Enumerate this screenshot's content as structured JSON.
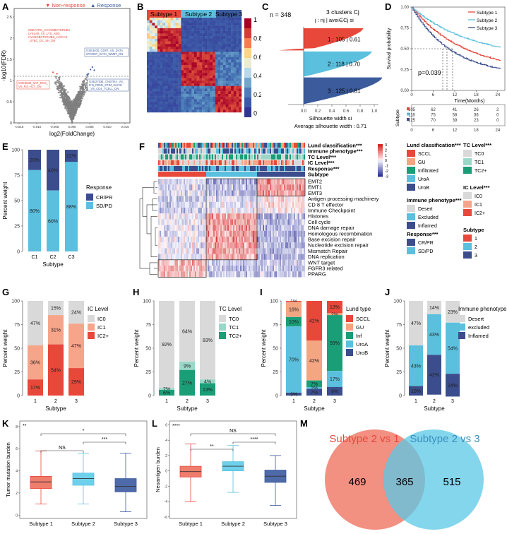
{
  "panel_letters": [
    "A",
    "B",
    "C",
    "D",
    "E",
    "F",
    "G",
    "H",
    "I",
    "J",
    "K",
    "L",
    "M"
  ],
  "colors": {
    "red": "#e8483a",
    "blue": "#3b5b9c",
    "lightblue": "#5bc0de",
    "gray": "#bfbfbf",
    "orange": "#f07e53",
    "salmon": "#f4a582",
    "teal": "#1a9e77",
    "mint": "#99d8c9",
    "darkred": "#b2182b",
    "peach": "#f6b8a0",
    "navy": "#3b4d8c"
  },
  "A": {
    "legend": [
      "Non-response",
      "Response"
    ],
    "xlabel": "log2(FoldChange)",
    "ylabel": "-log10(FDR)",
    "xticks": [
      "-0.015",
      "-0.010",
      "-0.005",
      "0.000",
      "0.005",
      "0.010",
      "0.015"
    ],
    "yticks": [
      "0",
      "0.5",
      "1",
      "1.5",
      "2",
      "2.5"
    ],
    "annot_left1": "OBEATRS_CVANOBCTERUB4\nLYSLAB_VS_LYS_AND_\nCVANOBCTERUB8_LYSCAS\n_STBC_DC_SH_DN",
    "annot_left2": "GSE6030_NAT_DCS_\nVS_R4_HCT_DN",
    "annot_right1": "GSE3400_CD8T_VS_DATA\nSTCD8T_DATA_WM6T_DN",
    "annot_right2": "GSE27934_CNSTRA_VS_\nIFN_R25N_STIM_NAIVE\n_VS_CD4_TCELL_DN"
  },
  "B": {
    "subtypes": [
      "Subtype 1",
      "Subtype 2",
      "Subtype 3"
    ],
    "colorbar_ticks": [
      "1",
      "0.8",
      "0.6",
      "0.4",
      "0.2",
      "0"
    ]
  },
  "C": {
    "n_text": "n = 348",
    "header1": "3  clusters  Cj",
    "header2": "j :  nj | avei∈Cj  si",
    "rows": [
      {
        "label": "1 :  105  |  0.61",
        "n": 105,
        "avg": 0.61
      },
      {
        "label": "2 :  118  |  0.70",
        "n": 118,
        "avg": 0.7
      },
      {
        "label": "3 :  125  |  0.81",
        "n": 125,
        "avg": 0.81
      }
    ],
    "xticks": [
      "0.0",
      "0.2",
      "0.4",
      "0.6",
      "0.8",
      "1.0"
    ],
    "xlabel": "Silhouette width si",
    "footer": "Average silhouette width : 0.71"
  },
  "D": {
    "legend": [
      "Subtype 1",
      "Subtype 2",
      "Subtype 3"
    ],
    "ylabel": "Survival probability",
    "xlabel": "Time(Months)",
    "pvalue": "p=0.039",
    "yticks": [
      "0.00",
      "0.25",
      "0.50",
      "0.75",
      "1.00"
    ],
    "xticks": [
      "0",
      "6",
      "12",
      "18",
      "24"
    ],
    "risk_label": "Subtype",
    "risk_table": [
      [
        "105",
        "62",
        "41",
        "26",
        "2"
      ],
      [
        "118",
        "75",
        "58",
        "36",
        "0"
      ],
      [
        "125",
        "70",
        "39",
        "23",
        "0"
      ]
    ]
  },
  "E": {
    "ylabel": "Percent weight",
    "xlabel": "Subtype",
    "categories": [
      "C1",
      "C2",
      "C3"
    ],
    "legend_title": "Response",
    "legend": [
      "CR/PR",
      "SD/PD"
    ],
    "top": [
      20,
      40,
      12
    ],
    "bottom": [
      80,
      60,
      88
    ],
    "top_labels": [
      "20%",
      "40%",
      "12%"
    ],
    "bottom_labels": [
      "80%",
      "60%",
      "88%"
    ]
  },
  "F": {
    "annotation_rows": [
      "Lund classification***",
      "Immune phenotype***",
      "TC Level***",
      "IC Level***",
      "Response***",
      "Subtype"
    ],
    "pathways": [
      "EMT2",
      "EMT1",
      "EMT3",
      "Antigen processing machinery",
      "CD 8 T effector",
      "Immune Checkpoint",
      "Histones",
      "Cell cycle",
      "DNA damage repair",
      "Homologous recombination",
      "Base excision repair",
      "Nucleotide excision repair",
      "Mismatch Repair",
      "DNA replication",
      "WNT target",
      "FGFR3 related",
      "PPARG"
    ],
    "colorbar_ticks": [
      "3",
      "2",
      "1",
      "0",
      "-1",
      "-2",
      "-3"
    ],
    "legend_lund_title": "Lund classification***",
    "legend_lund": [
      "SCCL",
      "GU",
      "Infiltrated",
      "UroA",
      "UroB"
    ],
    "legend_immune_title": "Immune phenotype***",
    "legend_immune": [
      "Desert",
      "Excluded",
      "Inflamed"
    ],
    "legend_response_title": "Response***",
    "legend_response": [
      "CR/PR",
      "SD/PD"
    ],
    "legend_tc_title": "TC Level***",
    "legend_tc": [
      "TC0",
      "TC1",
      "TC2+"
    ],
    "legend_ic_title": "IC Level***",
    "legend_ic": [
      "IC0",
      "IC1",
      "IC2+"
    ],
    "legend_subtype_title": "Subtype",
    "legend_subtype": [
      "1",
      "2",
      "3"
    ]
  },
  "G": {
    "ylabel": "Percent weight",
    "xlabel": "Subtype",
    "categories": [
      "1",
      "2",
      "3"
    ],
    "legend_title": "IC Level",
    "legend": [
      "IC0",
      "IC1",
      "IC2+"
    ],
    "stack": [
      [
        47,
        36,
        17
      ],
      [
        15,
        31,
        54
      ],
      [
        24,
        47,
        29
      ]
    ],
    "labels": [
      [
        "47%",
        "36%",
        "17%"
      ],
      [
        "15%",
        "31%",
        "54%"
      ],
      [
        "24%",
        "47%",
        "29%"
      ]
    ]
  },
  "H": {
    "ylabel": "Percent weight",
    "xlabel": "Subtype",
    "categories": [
      "1",
      "2",
      "3"
    ],
    "legend_title": "TC Level",
    "legend": [
      "TC0",
      "TC1",
      "TC2+"
    ],
    "stack": [
      [
        92,
        2,
        6
      ],
      [
        64,
        9,
        27
      ],
      [
        83,
        4,
        13
      ]
    ],
    "labels": [
      [
        "92%",
        "2%",
        "6%"
      ],
      [
        "64%",
        "9%",
        "27%"
      ],
      [
        "83%",
        "4%",
        "13%"
      ]
    ]
  },
  "I": {
    "ylabel": "Percent weight",
    "xlabel": "Subtype",
    "categories": [
      "1",
      "2",
      "3"
    ],
    "legend_title": "Lund type",
    "legend": [
      "SCCL",
      "GU",
      "Inf",
      "UroA",
      "UroB"
    ],
    "stack": [
      [
        1,
        16,
        10,
        70,
        3
      ],
      [
        42,
        42,
        7,
        2,
        7
      ],
      [
        13,
        2,
        59,
        17,
        9
      ]
    ],
    "labels": [
      [
        "1%",
        "16%",
        "10%",
        "70%",
        "3%"
      ],
      [
        "42%",
        "42%",
        "7%",
        "2%",
        "7%"
      ],
      [
        "13%",
        "2%",
        "59%",
        "17%",
        "9%"
      ]
    ]
  },
  "J": {
    "ylabel": "Percent weight",
    "xlabel": "Subtype",
    "categories": [
      "1",
      "2",
      "3"
    ],
    "legend_title": "Immune phenotype",
    "legend": [
      "Desert",
      "excluded",
      "Inflamed"
    ],
    "stack": [
      [
        47,
        43,
        10
      ],
      [
        14,
        43,
        42
      ],
      [
        23,
        54,
        24
      ]
    ],
    "labels": [
      [
        "47%",
        "43%",
        "10%"
      ],
      [
        "14%",
        "43%",
        "42%"
      ],
      [
        "23%",
        "54%",
        "24%"
      ]
    ]
  },
  "K": {
    "ylabel": "Tumor mutation burden",
    "categories": [
      "Subtype 1",
      "Subtype 2",
      "Subtype 3"
    ],
    "overall": "**",
    "comparisons": [
      "NS",
      "*",
      "***"
    ],
    "yticks": [
      "0",
      "2",
      "4",
      "6",
      "8"
    ],
    "boxes": [
      {
        "min": 1.0,
        "q1": 2.4,
        "median": 3.0,
        "q3": 3.5,
        "max": 5.8
      },
      {
        "min": 1.0,
        "q1": 2.7,
        "median": 3.3,
        "q3": 3.8,
        "max": 5.6
      },
      {
        "min": 0.3,
        "q1": 2.1,
        "median": 2.6,
        "q3": 3.3,
        "max": 5.6
      }
    ]
  },
  "L": {
    "ylabel": "Neoantigen burden",
    "categories": [
      "Subtype 1",
      "Subtype 2",
      "Subtype 3"
    ],
    "overall": "****",
    "comparisons": [
      "**",
      "****",
      "NS"
    ],
    "yticks": [
      "-6",
      "-4",
      "-2",
      "0",
      "2",
      "4",
      "6"
    ],
    "boxes": [
      {
        "min": -4.0,
        "q1": -0.8,
        "median": -0.1,
        "q3": 0.6,
        "max": 3.5
      },
      {
        "min": -2.8,
        "q1": 0.0,
        "median": 0.6,
        "q3": 1.2,
        "max": 3.3
      },
      {
        "min": -4.5,
        "q1": -1.5,
        "median": -0.7,
        "q3": 0.1,
        "max": 2.0
      }
    ]
  },
  "M": {
    "label_left": "Subtype 2 vs 1",
    "label_right": "Subtype 2 vs 3",
    "left_only": "469",
    "overlap": "365",
    "right_only": "515"
  }
}
